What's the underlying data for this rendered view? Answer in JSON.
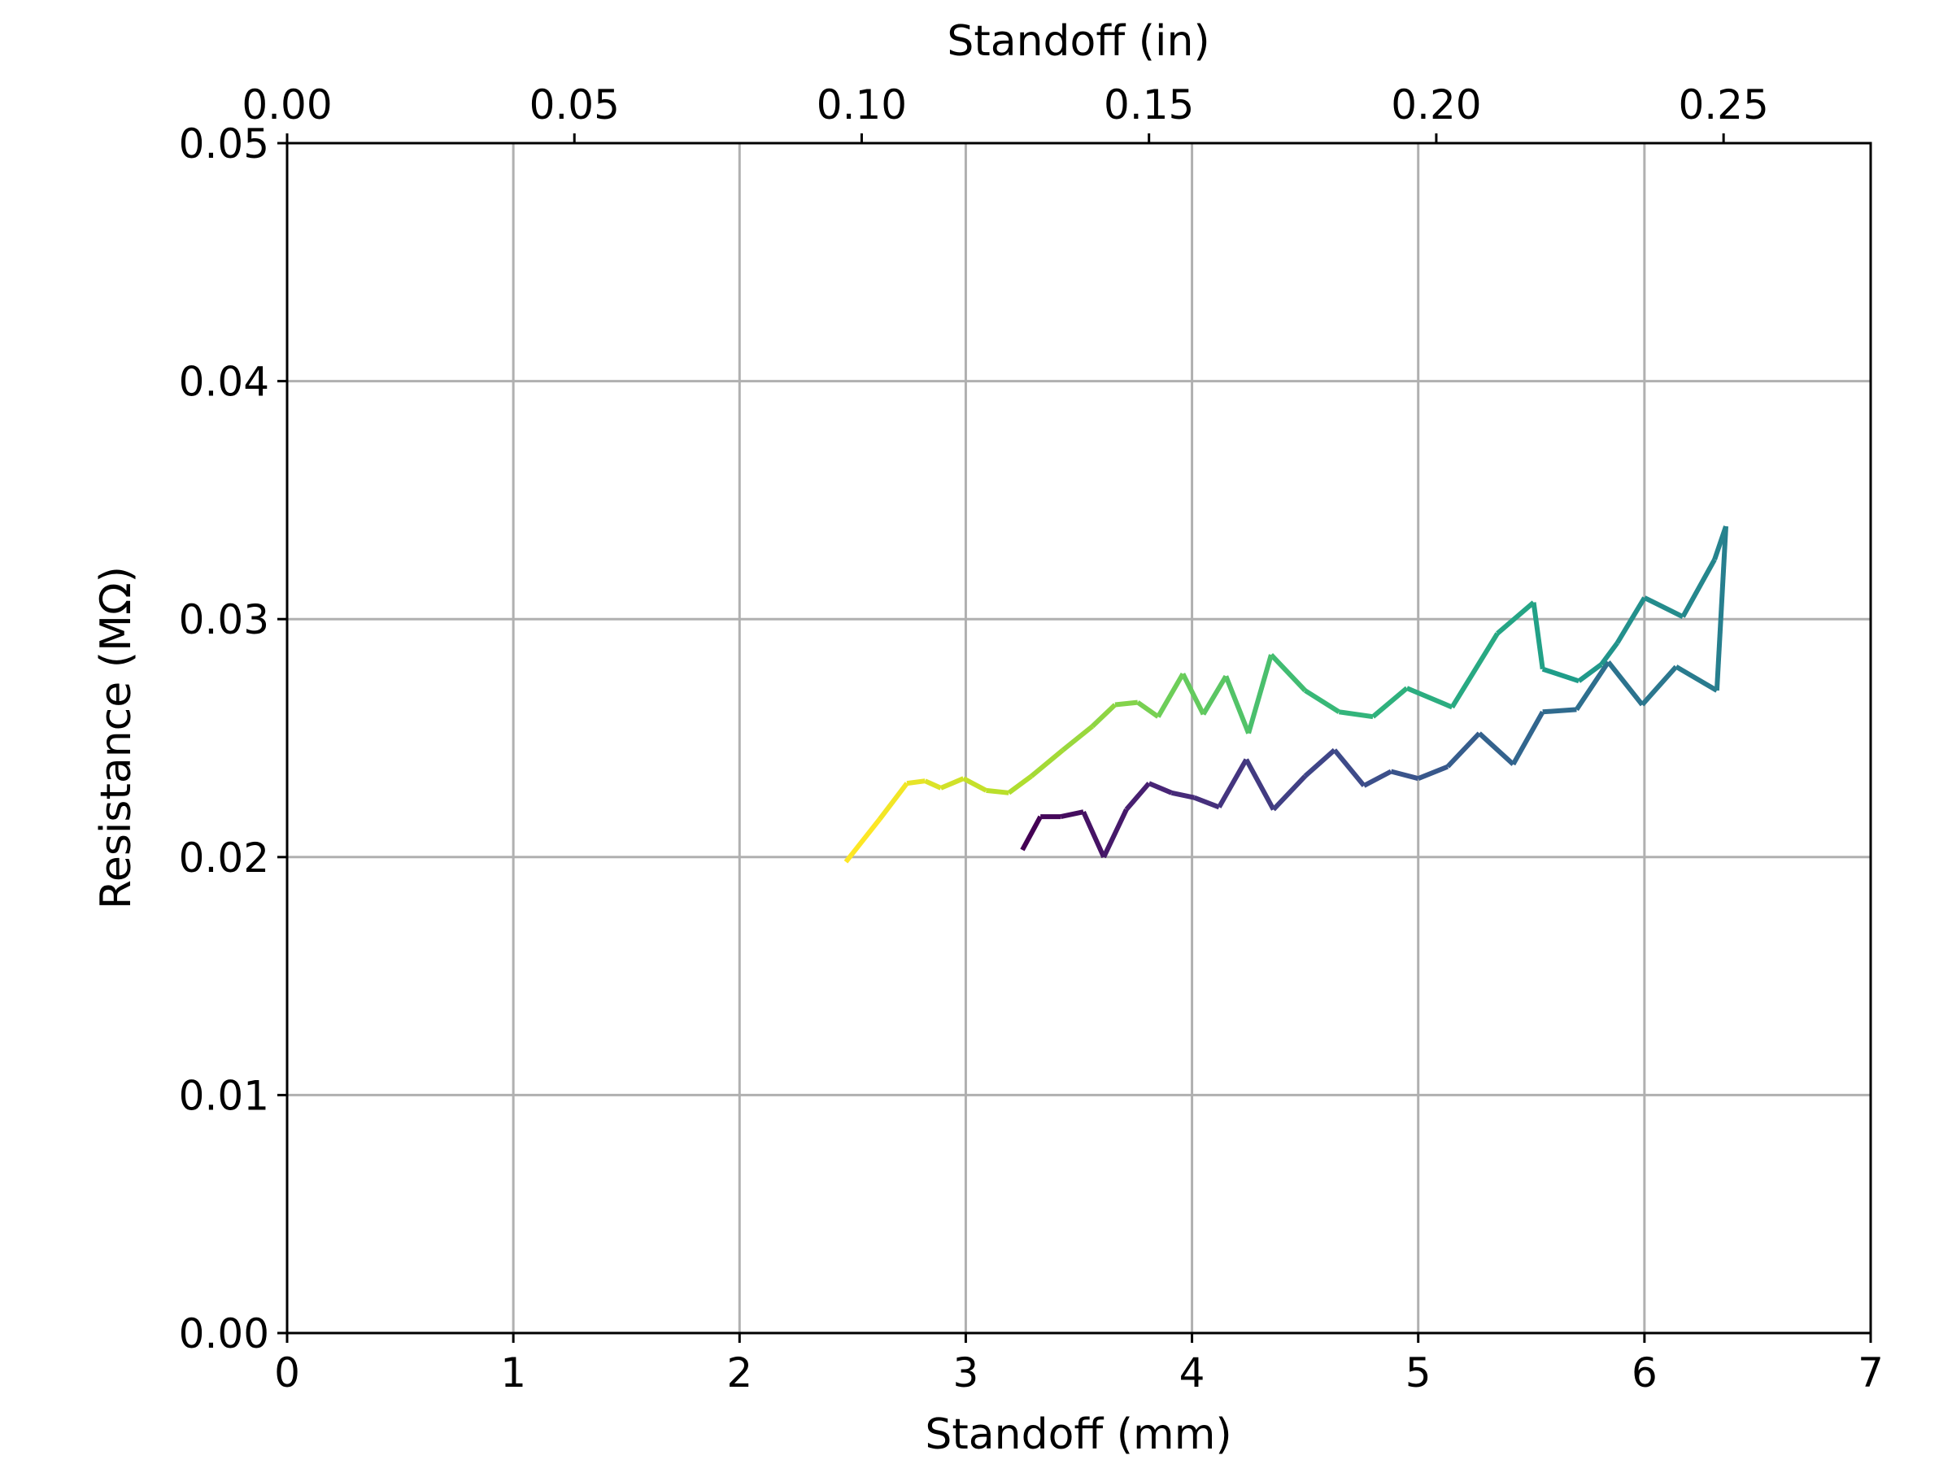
{
  "chart_data": {
    "type": "line",
    "title": "",
    "xlabel": "Standoff (mm)",
    "x2label": "Standoff (in)",
    "ylabel": "Resistance (MΩ)",
    "xlim": [
      0,
      7
    ],
    "x2lim": [
      0,
      0.2756
    ],
    "ylim": [
      0,
      0.05
    ],
    "x_ticks": [
      "0",
      "1",
      "2",
      "3",
      "4",
      "5",
      "6",
      "7"
    ],
    "x2_ticks": [
      "0.00",
      "0.05",
      "0.10",
      "0.15",
      "0.20",
      "0.25"
    ],
    "y_ticks": [
      "0.00",
      "0.01",
      "0.02",
      "0.03",
      "0.04",
      "0.05"
    ],
    "grid": true,
    "colormap": "viridis",
    "series": [
      {
        "x": [
          3.25,
          3.33,
          3.42,
          3.52,
          3.61,
          3.71,
          3.81,
          3.91,
          4.01,
          4.12,
          4.24,
          4.36,
          4.5,
          4.63,
          4.76,
          4.88,
          5.0,
          5.13,
          5.27,
          5.42,
          5.55,
          5.7,
          5.84,
          5.99,
          6.14,
          6.32,
          6.36
        ],
        "y": [
          0.0203,
          0.0217,
          0.0217,
          0.0219,
          0.02,
          0.022,
          0.0231,
          0.0227,
          0.0225,
          0.0221,
          0.0241,
          0.022,
          0.0234,
          0.0245,
          0.023,
          0.0236,
          0.0233,
          0.0238,
          0.0252,
          0.0239,
          0.0261,
          0.0262,
          0.0282,
          0.0264,
          0.028,
          0.027,
          0.0339
        ]
      },
      {
        "x": [
          6.36,
          6.31,
          6.17,
          6.0,
          5.88,
          5.81,
          5.71,
          5.55,
          5.51,
          5.35,
          5.15,
          4.95,
          4.8,
          4.65,
          4.5,
          4.35,
          4.25,
          4.15,
          4.05,
          3.96,
          3.85,
          3.76,
          3.66,
          3.56,
          3.43,
          3.29,
          3.19,
          3.09,
          2.99,
          2.89,
          2.82,
          2.74,
          2.62,
          2.47
        ],
        "y": [
          0.0339,
          0.0325,
          0.0301,
          0.0309,
          0.029,
          0.0281,
          0.0274,
          0.0279,
          0.0307,
          0.0294,
          0.0263,
          0.0271,
          0.0259,
          0.0261,
          0.027,
          0.0285,
          0.0252,
          0.0276,
          0.026,
          0.0277,
          0.0259,
          0.0265,
          0.0264,
          0.0255,
          0.0245,
          0.0234,
          0.0227,
          0.0228,
          0.0233,
          0.0229,
          0.0232,
          0.0231,
          0.0216,
          0.0198
        ]
      }
    ]
  }
}
